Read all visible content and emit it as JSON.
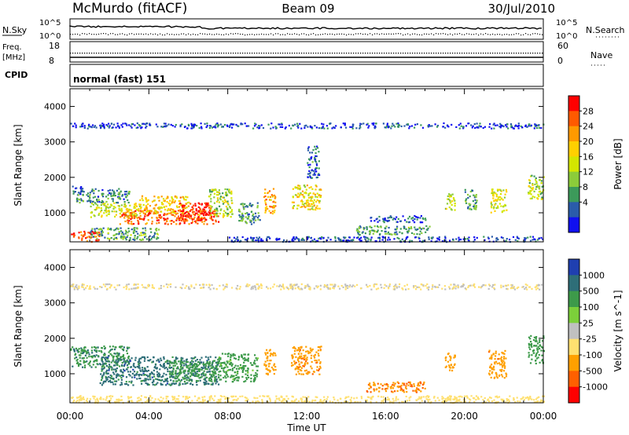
{
  "header": {
    "station": "McMurdo (fitACF)",
    "beam": "Beam 09",
    "date": "30/Jul/2010"
  },
  "top_panels": {
    "nsky_label": "N.Sky",
    "nsky_ticks": [
      "10^5",
      "10^0"
    ],
    "nsearch_label": "N.Search",
    "nsearch_ticks": [
      "10^5",
      "10^0"
    ],
    "freq_label": "Freq.",
    "freq_unit": "[MHz]",
    "freq_ticks": [
      "18",
      "8"
    ],
    "nave_label": "Nave",
    "nave_ticks": [
      "60",
      "0"
    ],
    "cpid_label": "CPID",
    "cpid_value": "normal (fast) 151"
  },
  "x_axis": {
    "label": "Time UT",
    "ticks": [
      "00:00",
      "04:00",
      "08:00",
      "12:00",
      "16:00",
      "20:00",
      "00:00"
    ]
  },
  "chart_data": [
    {
      "type": "heatmap",
      "name": "power",
      "ylabel": "Slant Range [km]",
      "yticks": [
        "4000",
        "3000",
        "2000",
        "1000"
      ],
      "ylim": [
        180,
        4500
      ],
      "xlim_hours": [
        0,
        24
      ],
      "colorbar_label": "Power [dB]",
      "colorbar_ticks": [
        "28",
        "24",
        "20",
        "16",
        "12",
        "8",
        "4"
      ],
      "colorbar_colors": [
        "#ff0000",
        "#ff5a00",
        "#ff9a00",
        "#ffd000",
        "#d4e600",
        "#8ccc3a",
        "#3c9a5a",
        "#2a5caa",
        "#1010f0"
      ],
      "regions": [
        {
          "t0": 0.0,
          "t1": 0.6,
          "r0": 1500,
          "r1": 1800,
          "v": 5
        },
        {
          "t0": 0.3,
          "t1": 3.0,
          "r0": 1300,
          "r1": 1700,
          "v": 8
        },
        {
          "t0": 1.0,
          "t1": 3.5,
          "r0": 900,
          "r1": 1300,
          "v": 16
        },
        {
          "t0": 2.5,
          "t1": 7.5,
          "r0": 700,
          "r1": 1100,
          "v": 26
        },
        {
          "t0": 3.5,
          "t1": 6.0,
          "r0": 1000,
          "r1": 1500,
          "v": 20
        },
        {
          "t0": 5.5,
          "t1": 7.3,
          "r0": 800,
          "r1": 1300,
          "v": 30
        },
        {
          "t0": 7.0,
          "t1": 8.2,
          "r0": 900,
          "r1": 1700,
          "v": 14
        },
        {
          "t0": 0.0,
          "t1": 1.5,
          "r0": 200,
          "r1": 500,
          "v": 28
        },
        {
          "t0": 1.0,
          "t1": 4.5,
          "r0": 250,
          "r1": 600,
          "v": 10
        },
        {
          "t0": 8.5,
          "t1": 9.6,
          "r0": 700,
          "r1": 1300,
          "v": 8
        },
        {
          "t0": 9.8,
          "t1": 10.4,
          "r0": 1000,
          "r1": 1700,
          "v": 22
        },
        {
          "t0": 11.2,
          "t1": 12.7,
          "r0": 1100,
          "r1": 1800,
          "v": 18
        },
        {
          "t0": 12.0,
          "t1": 12.6,
          "r0": 2000,
          "r1": 2900,
          "v": 6
        },
        {
          "t0": 15.2,
          "t1": 18.0,
          "r0": 750,
          "r1": 950,
          "v": 5
        },
        {
          "t0": 14.5,
          "t1": 18.2,
          "r0": 400,
          "r1": 650,
          "v": 10
        },
        {
          "t0": 19.0,
          "t1": 19.5,
          "r0": 1100,
          "r1": 1600,
          "v": 14
        },
        {
          "t0": 20.0,
          "t1": 20.6,
          "r0": 1100,
          "r1": 1700,
          "v": 10
        },
        {
          "t0": 21.3,
          "t1": 22.1,
          "r0": 1000,
          "r1": 1700,
          "v": 16
        },
        {
          "t0": 23.2,
          "t1": 24.0,
          "r0": 1400,
          "r1": 2100,
          "v": 14
        },
        {
          "t0": 0.0,
          "t1": 24.0,
          "r0": 3400,
          "r1": 3550,
          "v": 4
        },
        {
          "t0": 8.0,
          "t1": 24.0,
          "r0": 200,
          "r1": 350,
          "v": 4
        }
      ]
    },
    {
      "type": "heatmap",
      "name": "velocity",
      "ylabel": "Slant Range [km]",
      "yticks": [
        "4000",
        "3000",
        "2000",
        "1000"
      ],
      "ylim": [
        180,
        4500
      ],
      "xlim_hours": [
        0,
        24
      ],
      "colorbar_label": "Velocity [m s^-1]",
      "colorbar_ticks": [
        "1000",
        "500",
        "100",
        "25",
        "-25",
        "-100",
        "-500",
        "-1000"
      ],
      "colorbar_colors": [
        "#1f3fb0",
        "#2e6e78",
        "#3d9a4a",
        "#7ccf3a",
        "#c0c0c0",
        "#ffe070",
        "#ffa000",
        "#ff6000",
        "#ff0000"
      ],
      "regions": [
        {
          "t0": 0.0,
          "t1": 3.0,
          "r0": 1200,
          "r1": 1800,
          "v": 400
        },
        {
          "t0": 1.5,
          "t1": 7.5,
          "r0": 700,
          "r1": 1500,
          "v": 700
        },
        {
          "t0": 5.0,
          "t1": 7.5,
          "r0": 800,
          "r1": 1400,
          "v": 300
        },
        {
          "t0": 7.5,
          "t1": 9.5,
          "r0": 800,
          "r1": 1600,
          "v": 200
        },
        {
          "t0": 9.8,
          "t1": 10.4,
          "r0": 1000,
          "r1": 1700,
          "v": -300
        },
        {
          "t0": 11.2,
          "t1": 12.7,
          "r0": 1000,
          "r1": 1800,
          "v": -400
        },
        {
          "t0": 15.0,
          "t1": 18.0,
          "r0": 500,
          "r1": 800,
          "v": -500
        },
        {
          "t0": 19.0,
          "t1": 19.5,
          "r0": 1100,
          "r1": 1600,
          "v": -300
        },
        {
          "t0": 21.2,
          "t1": 22.1,
          "r0": 900,
          "r1": 1700,
          "v": -400
        },
        {
          "t0": 23.2,
          "t1": 24.0,
          "r0": 1300,
          "r1": 2100,
          "v": 300
        },
        {
          "t0": 0.0,
          "t1": 24.0,
          "r0": 3400,
          "r1": 3550,
          "v": -30
        },
        {
          "t0": 0.0,
          "t1": 24.0,
          "r0": 200,
          "r1": 400,
          "v": -50
        }
      ]
    }
  ]
}
